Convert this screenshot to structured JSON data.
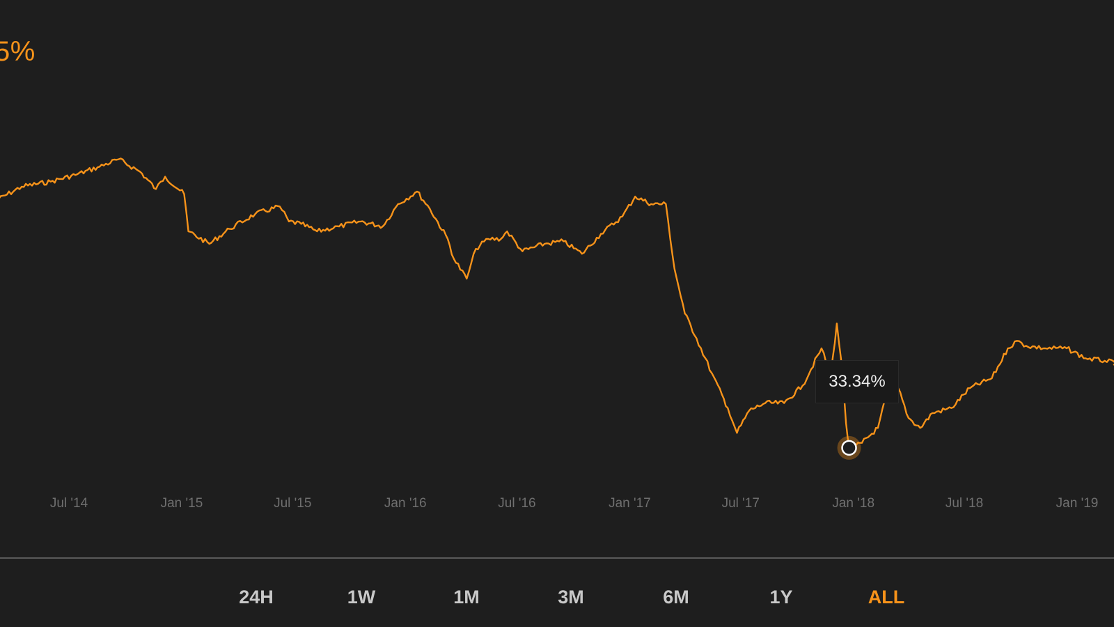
{
  "headline": {
    "value": "5%"
  },
  "tooltip": {
    "value": "33.34%"
  },
  "range_selector": {
    "options": [
      "24H",
      "1W",
      "1M",
      "3M",
      "6M",
      "1Y",
      "ALL"
    ],
    "active": "ALL"
  },
  "colors": {
    "background": "#1e1e1e",
    "line": "#f7931a",
    "tick_text": "#6f6f6f",
    "range_text": "#c8c8c8",
    "range_active": "#f7931a"
  },
  "chart_data": {
    "type": "line",
    "title": "",
    "xlabel": "",
    "ylabel": "",
    "grid": false,
    "legend": "none",
    "x_tick_labels": [
      "Jul '14",
      "Jan '15",
      "Jul '15",
      "Jan '16",
      "Jul '16",
      "Jan '17",
      "Jul '17",
      "Jan '18",
      "Jul '18",
      "Jan '19"
    ],
    "ylim": [
      25,
      95
    ],
    "series": [
      {
        "x": [
          "2014-03-01",
          "2014-04-15",
          "2014-06-01",
          "2014-07-15",
          "2014-08-20",
          "2014-09-20",
          "2014-10-25",
          "2014-11-20",
          "2014-12-05",
          "2015-01-05",
          "2015-01-12",
          "2015-02-15",
          "2015-03-20",
          "2015-05-01",
          "2015-06-10",
          "2015-06-25",
          "2015-07-15",
          "2015-08-10",
          "2015-09-15",
          "2015-10-20",
          "2015-11-25",
          "2015-12-20",
          "2016-01-20",
          "2016-02-10",
          "2016-03-10",
          "2016-03-20",
          "2016-04-10",
          "2016-04-25",
          "2016-05-15",
          "2016-06-05",
          "2016-06-15",
          "2016-07-10",
          "2016-08-15",
          "2016-09-15",
          "2016-10-15",
          "2016-11-15",
          "2016-12-20",
          "2017-01-10",
          "2017-02-05",
          "2017-03-01",
          "2017-03-15",
          "2017-04-01",
          "2017-04-20",
          "2017-05-15",
          "2017-06-10",
          "2017-06-25",
          "2017-07-15",
          "2017-08-10",
          "2017-09-10",
          "2017-10-10",
          "2017-11-10",
          "2017-11-25",
          "2017-12-05",
          "2017-12-15",
          "2017-12-20",
          "2017-12-25",
          "2018-01-05",
          "2018-01-15",
          "2018-02-10",
          "2018-02-25",
          "2018-03-15",
          "2018-04-01",
          "2018-04-20",
          "2018-05-10",
          "2018-06-10",
          "2018-07-10",
          "2018-08-15",
          "2018-09-10",
          "2018-09-25",
          "2018-10-10",
          "2018-11-10",
          "2018-12-15",
          "2019-01-15",
          "2019-02-15",
          "2019-03-05"
        ],
        "values": [
          75.5,
          78.5,
          79.5,
          81,
          82.5,
          84,
          81.5,
          78,
          80.5,
          77,
          69.5,
          67,
          70,
          73,
          74.5,
          71.5,
          71,
          69.5,
          70.5,
          71.5,
          70.5,
          75,
          77.5,
          74,
          68,
          64,
          60,
          66,
          68,
          68,
          69.5,
          65.5,
          67,
          67.5,
          65,
          69,
          72.5,
          76.5,
          75,
          75,
          62,
          53,
          48,
          41,
          34,
          29,
          33.5,
          35,
          35,
          38.5,
          46,
          40.5,
          51,
          40,
          31,
          26,
          26.5,
          27,
          30,
          37,
          38,
          32,
          30,
          33,
          34,
          38,
          40,
          46,
          47.5,
          46.5,
          46,
          46,
          44,
          43.5,
          43
        ],
        "tooltip_point": {
          "x": "2017-12-25",
          "y": 26
        }
      }
    ]
  }
}
